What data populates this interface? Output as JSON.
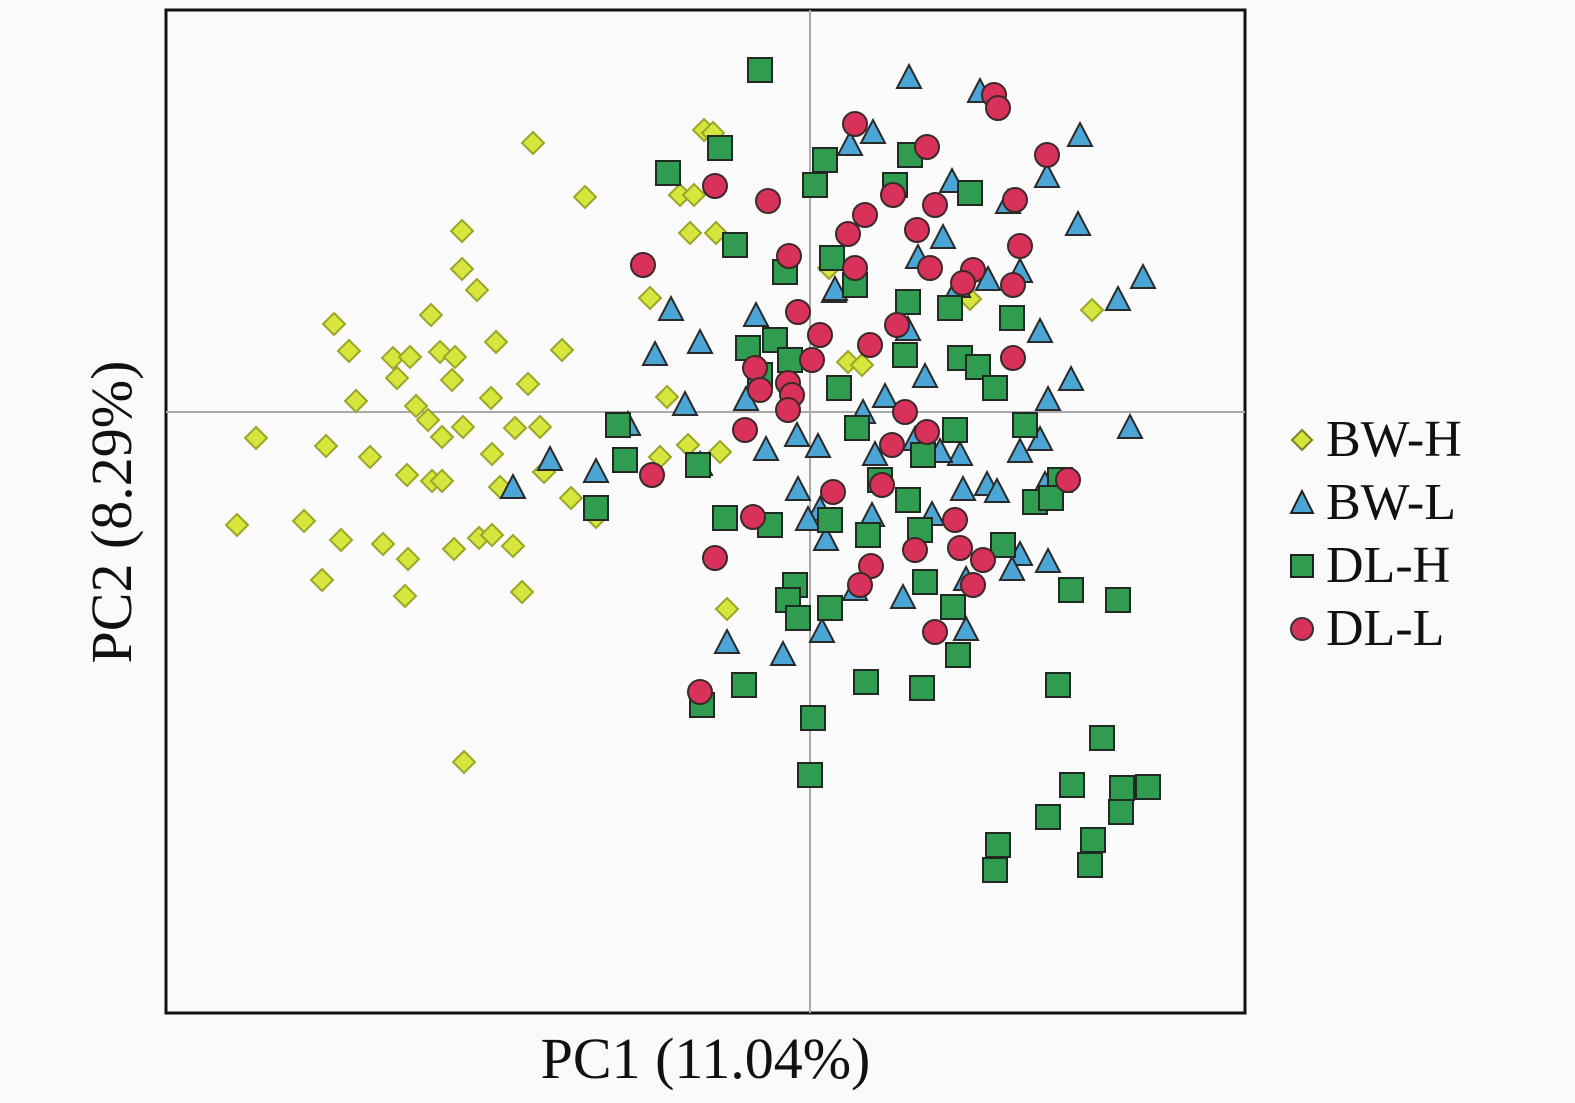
{
  "chart_data": {
    "type": "scatter",
    "title": "",
    "xlabel": "PC1 (11.04%)",
    "ylabel": "PC2 (8.29%)",
    "xlim": [
      -6.44,
      4.35
    ],
    "ylim": [
      -6.01,
      4.02
    ],
    "grid": false,
    "reference_lines": {
      "x": 0,
      "y": 0
    },
    "legend_position": "right",
    "series": [
      {
        "name": "BW-H",
        "marker": "diamond",
        "color": "#d6e63c",
        "stroke": "#9aa52a",
        "points": [
          [
            -2.77,
            2.69
          ],
          [
            -2.25,
            2.15
          ],
          [
            -3.48,
            1.81
          ],
          [
            -3.48,
            1.43
          ],
          [
            -3.33,
            1.22
          ],
          [
            -4.76,
            0.88
          ],
          [
            -3.79,
            0.97
          ],
          [
            -4.61,
            0.61
          ],
          [
            -4.17,
            0.54
          ],
          [
            -4.0,
            0.55
          ],
          [
            -3.7,
            0.6
          ],
          [
            -3.55,
            0.55
          ],
          [
            -4.13,
            0.34
          ],
          [
            -3.58,
            0.32
          ],
          [
            -3.14,
            0.7
          ],
          [
            -2.48,
            0.62
          ],
          [
            -2.82,
            0.28
          ],
          [
            -4.54,
            0.11
          ],
          [
            -3.19,
            0.14
          ],
          [
            -3.94,
            0.06
          ],
          [
            -3.82,
            -0.08
          ],
          [
            -3.47,
            -0.15
          ],
          [
            -3.68,
            -0.25
          ],
          [
            -2.95,
            -0.16
          ],
          [
            -2.7,
            -0.15
          ],
          [
            -5.54,
            -0.26
          ],
          [
            -4.84,
            -0.34
          ],
          [
            -4.4,
            -0.45
          ],
          [
            -3.18,
            -0.42
          ],
          [
            -4.03,
            -0.63
          ],
          [
            -3.78,
            -0.69
          ],
          [
            -3.68,
            -0.69
          ],
          [
            -3.1,
            -0.75
          ],
          [
            -2.66,
            -0.6
          ],
          [
            -2.39,
            -0.86
          ],
          [
            -5.73,
            -1.13
          ],
          [
            -5.06,
            -1.09
          ],
          [
            -4.69,
            -1.28
          ],
          [
            -4.27,
            -1.32
          ],
          [
            -4.02,
            -1.47
          ],
          [
            -3.56,
            -1.37
          ],
          [
            -3.31,
            -1.26
          ],
          [
            -3.18,
            -1.23
          ],
          [
            -2.97,
            -1.34
          ],
          [
            -4.88,
            -1.68
          ],
          [
            -4.05,
            -1.84
          ],
          [
            -2.88,
            -1.8
          ],
          [
            -3.46,
            -3.5
          ],
          [
            -1.06,
            2.82
          ],
          [
            -0.97,
            2.79
          ],
          [
            -1.3,
            2.17
          ],
          [
            -1.16,
            2.17
          ],
          [
            -1.2,
            1.79
          ],
          [
            -0.94,
            1.79
          ],
          [
            -1.6,
            1.14
          ],
          [
            -1.43,
            0.15
          ],
          [
            -1.22,
            -0.33
          ],
          [
            -0.9,
            -0.4
          ],
          [
            -1.5,
            -0.45
          ],
          [
            -0.83,
            -1.97
          ],
          [
            -2.14,
            -1.05
          ],
          [
            2.82,
            1.02
          ],
          [
            0.38,
            0.5
          ],
          [
            0.52,
            0.47
          ],
          [
            0.19,
            1.44
          ],
          [
            1.6,
            1.13
          ]
        ]
      },
      {
        "name": "BW-L",
        "marker": "triangle",
        "color": "#4ba6d6",
        "stroke": "#2a2a2a",
        "points": [
          [
            0.99,
            3.34
          ],
          [
            1.7,
            3.2
          ],
          [
            2.7,
            2.76
          ],
          [
            0.4,
            2.67
          ],
          [
            0.63,
            2.79
          ],
          [
            1.42,
            2.3
          ],
          [
            2.37,
            2.35
          ],
          [
            1.98,
            2.09
          ],
          [
            2.68,
            1.87
          ],
          [
            1.33,
            1.74
          ],
          [
            1.08,
            1.54
          ],
          [
            3.33,
            1.34
          ],
          [
            3.08,
            1.12
          ],
          [
            2.1,
            1.4
          ],
          [
            1.78,
            1.32
          ],
          [
            0.24,
            1.2
          ],
          [
            -1.39,
            1.02
          ],
          [
            -0.54,
            0.96
          ],
          [
            -1.1,
            0.69
          ],
          [
            -1.55,
            0.57
          ],
          [
            2.3,
            0.8
          ],
          [
            1.15,
            0.35
          ],
          [
            2.61,
            0.32
          ],
          [
            2.38,
            0.12
          ],
          [
            3.2,
            -0.16
          ],
          [
            2.3,
            -0.28
          ],
          [
            2.1,
            -0.4
          ],
          [
            1.5,
            -0.43
          ],
          [
            1.3,
            -0.4
          ],
          [
            0.75,
            0.15
          ],
          [
            -0.64,
            0.12
          ],
          [
            -1.25,
            0.07
          ],
          [
            -1.82,
            -0.13
          ],
          [
            -2.6,
            -0.48
          ],
          [
            -2.97,
            -0.76
          ],
          [
            -2.14,
            -0.6
          ],
          [
            -1.1,
            -0.53
          ],
          [
            -0.44,
            -0.38
          ],
          [
            -0.13,
            -0.24
          ],
          [
            0.08,
            -0.35
          ],
          [
            0.65,
            -0.43
          ],
          [
            1.05,
            -0.28
          ],
          [
            1.53,
            -0.78
          ],
          [
            1.77,
            -0.73
          ],
          [
            1.87,
            -0.8
          ],
          [
            2.35,
            -0.73
          ],
          [
            -0.12,
            -0.78
          ],
          [
            0.1,
            -0.98
          ],
          [
            0.16,
            -1.28
          ],
          [
            -0.02,
            -1.08
          ],
          [
            1.22,
            -1.03
          ],
          [
            2.1,
            -1.43
          ],
          [
            2.02,
            -1.58
          ],
          [
            2.38,
            -1.5
          ],
          [
            1.56,
            -1.68
          ],
          [
            0.93,
            -1.86
          ],
          [
            1.56,
            -2.18
          ],
          [
            0.12,
            -2.2
          ],
          [
            -0.27,
            -2.43
          ],
          [
            -0.83,
            -2.31
          ],
          [
            0.45,
            -1.78
          ],
          [
            0.62,
            -1.04
          ],
          [
            0.53,
            -0.01
          ],
          [
            0.25,
            1.22
          ],
          [
            0.98,
            0.82
          ],
          [
            1.48,
            1.25
          ]
        ]
      },
      {
        "name": "DL-H",
        "marker": "square",
        "color": "#2f9c50",
        "stroke": "#1f2a22",
        "points": [
          [
            -0.5,
            3.42
          ],
          [
            -0.9,
            2.64
          ],
          [
            -1.42,
            2.39
          ],
          [
            0.15,
            2.52
          ],
          [
            0.05,
            2.27
          ],
          [
            1.0,
            2.57
          ],
          [
            0.85,
            2.27
          ],
          [
            1.6,
            2.19
          ],
          [
            -0.75,
            1.67
          ],
          [
            -0.25,
            1.4
          ],
          [
            0.22,
            1.54
          ],
          [
            0.45,
            1.27
          ],
          [
            0.98,
            1.1
          ],
          [
            1.4,
            1.04
          ],
          [
            2.02,
            0.94
          ],
          [
            -0.62,
            0.64
          ],
          [
            -0.35,
            0.72
          ],
          [
            -0.2,
            0.52
          ],
          [
            -0.5,
            0.37
          ],
          [
            0.29,
            0.24
          ],
          [
            0.95,
            0.57
          ],
          [
            1.5,
            0.54
          ],
          [
            1.68,
            0.45
          ],
          [
            1.85,
            0.24
          ],
          [
            0.47,
            -0.16
          ],
          [
            1.45,
            -0.18
          ],
          [
            1.13,
            -0.43
          ],
          [
            2.15,
            -0.13
          ],
          [
            0.7,
            -0.68
          ],
          [
            0.98,
            -0.88
          ],
          [
            -1.12,
            -0.53
          ],
          [
            -1.85,
            -0.48
          ],
          [
            -1.92,
            -0.13
          ],
          [
            -2.14,
            -0.96
          ],
          [
            -0.85,
            -1.06
          ],
          [
            -0.4,
            -1.13
          ],
          [
            0.2,
            -1.08
          ],
          [
            0.58,
            -1.23
          ],
          [
            1.1,
            -1.18
          ],
          [
            1.93,
            -1.33
          ],
          [
            2.25,
            -0.9
          ],
          [
            2.5,
            -0.68
          ],
          [
            2.41,
            -0.86
          ],
          [
            -0.15,
            -1.73
          ],
          [
            -0.22,
            -1.88
          ],
          [
            -0.12,
            -2.06
          ],
          [
            0.2,
            -1.96
          ],
          [
            1.15,
            -1.7
          ],
          [
            1.43,
            -1.95
          ],
          [
            1.48,
            -2.43
          ],
          [
            2.61,
            -1.78
          ],
          [
            3.08,
            -1.88
          ],
          [
            0.56,
            -2.7
          ],
          [
            1.12,
            -2.76
          ],
          [
            -0.66,
            -2.73
          ],
          [
            -1.08,
            -2.93
          ],
          [
            0.03,
            -3.06
          ],
          [
            0.0,
            -3.63
          ],
          [
            2.48,
            -2.73
          ],
          [
            2.92,
            -3.26
          ],
          [
            2.62,
            -3.73
          ],
          [
            3.12,
            -3.76
          ],
          [
            3.38,
            -3.75
          ],
          [
            3.11,
            -4.0
          ],
          [
            2.38,
            -4.05
          ],
          [
            1.88,
            -4.33
          ],
          [
            2.83,
            -4.28
          ],
          [
            1.85,
            -4.58
          ],
          [
            2.8,
            -4.53
          ]
        ]
      },
      {
        "name": "DL-L",
        "marker": "circle",
        "color": "#d8325a",
        "stroke": "#3a2a2a",
        "points": [
          [
            1.84,
            3.17
          ],
          [
            1.88,
            3.04
          ],
          [
            0.45,
            2.88
          ],
          [
            1.17,
            2.65
          ],
          [
            2.37,
            2.57
          ],
          [
            -0.95,
            2.26
          ],
          [
            -0.42,
            2.11
          ],
          [
            0.83,
            2.17
          ],
          [
            1.25,
            2.07
          ],
          [
            0.55,
            1.97
          ],
          [
            2.05,
            2.12
          ],
          [
            1.07,
            1.82
          ],
          [
            0.38,
            1.78
          ],
          [
            -0.21,
            1.56
          ],
          [
            -1.67,
            1.47
          ],
          [
            0.45,
            1.44
          ],
          [
            1.2,
            1.44
          ],
          [
            1.63,
            1.42
          ],
          [
            1.53,
            1.29
          ],
          [
            2.03,
            1.27
          ],
          [
            2.1,
            1.66
          ],
          [
            -0.12,
            1.0
          ],
          [
            0.1,
            0.77
          ],
          [
            0.6,
            0.67
          ],
          [
            0.87,
            0.87
          ],
          [
            2.03,
            0.54
          ],
          [
            -0.55,
            0.44
          ],
          [
            0.02,
            0.52
          ],
          [
            -0.22,
            0.29
          ],
          [
            -0.18,
            0.17
          ],
          [
            -0.5,
            0.22
          ],
          [
            -0.22,
            0.02
          ],
          [
            0.95,
            0.0
          ],
          [
            0.82,
            -0.33
          ],
          [
            1.17,
            -0.2
          ],
          [
            -0.65,
            -0.18
          ],
          [
            -1.58,
            -0.63
          ],
          [
            0.23,
            -0.8
          ],
          [
            0.72,
            -0.73
          ],
          [
            -0.57,
            -1.05
          ],
          [
            -0.95,
            -1.46
          ],
          [
            1.45,
            -1.08
          ],
          [
            1.05,
            -1.38
          ],
          [
            1.5,
            -1.36
          ],
          [
            1.73,
            -1.48
          ],
          [
            0.61,
            -1.54
          ],
          [
            0.5,
            -1.73
          ],
          [
            1.63,
            -1.73
          ],
          [
            1.25,
            -2.2
          ],
          [
            2.58,
            -0.68
          ],
          [
            -1.1,
            -2.8
          ]
        ]
      }
    ]
  }
}
